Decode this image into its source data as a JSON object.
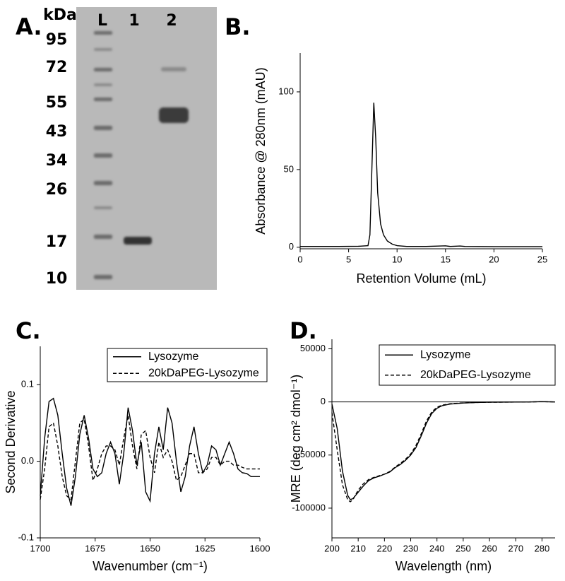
{
  "gel": {
    "panel_label": "A.",
    "unit_label": "kDa",
    "lanes": [
      "L",
      "1",
      "2"
    ],
    "markers": [
      95,
      72,
      55,
      43,
      34,
      26,
      17,
      10
    ]
  },
  "chart_data": [
    {
      "type": "line",
      "panel_label": "B.",
      "x_label": "Retention Volume (mL)",
      "y_label": "Absorbance @ 280nm (mAU)",
      "x": [
        0,
        2,
        4,
        6,
        7,
        7.2,
        7.4,
        7.6,
        7.8,
        8,
        8.3,
        8.6,
        9,
        9.5,
        10,
        11,
        13,
        15,
        15.5,
        16.5,
        17,
        20,
        25
      ],
      "values": [
        0.5,
        0.5,
        0.5,
        0.6,
        1,
        8,
        50,
        93,
        70,
        35,
        15,
        8,
        4,
        2,
        1,
        0.5,
        0.5,
        0.9,
        0.5,
        0.8,
        0.5,
        0.4,
        0.4
      ],
      "color": "#000000",
      "xlim": [
        0,
        25
      ],
      "xticks": [
        0,
        5,
        10,
        15,
        20,
        25
      ],
      "ylim": [
        -1,
        125
      ],
      "yticks": [
        0,
        50,
        100
      ]
    },
    {
      "type": "line",
      "panel_label": "C.",
      "x_label": "Wavenumber (cm⁻¹)",
      "y_label": "Second Derivative",
      "x": [
        1700,
        1698,
        1696,
        1694,
        1692,
        1690,
        1688,
        1686,
        1684,
        1682,
        1680,
        1678,
        1676,
        1674,
        1672,
        1670,
        1668,
        1666,
        1664,
        1662,
        1660,
        1658,
        1656,
        1654,
        1652,
        1650,
        1648,
        1646,
        1644,
        1642,
        1640,
        1638,
        1636,
        1634,
        1632,
        1630,
        1628,
        1626,
        1624,
        1622,
        1620,
        1618,
        1616,
        1614,
        1612,
        1610,
        1608,
        1606,
        1604,
        1602,
        1600
      ],
      "series": [
        {
          "name": "Lysozyme",
          "color": "#000000",
          "line_style": "solid",
          "values": [
            -0.045,
            0.03,
            0.078,
            0.082,
            0.06,
            0.01,
            -0.035,
            -0.058,
            -0.02,
            0.035,
            0.06,
            0.03,
            -0.01,
            -0.02,
            -0.015,
            0.01,
            0.025,
            0.01,
            -0.03,
            0.01,
            0.07,
            0.04,
            -0.005,
            0.025,
            -0.04,
            -0.052,
            0.01,
            0.045,
            0.015,
            0.07,
            0.05,
            0.0,
            -0.04,
            -0.02,
            0.02,
            0.045,
            0.01,
            -0.015,
            -0.005,
            0.02,
            0.015,
            -0.005,
            0.01,
            0.025,
            0.01,
            -0.01,
            -0.015,
            -0.016,
            -0.02,
            -0.02,
            -0.02
          ]
        },
        {
          "name": "20kDaPEG-Lysozyme",
          "color": "#000000",
          "line_style": "dashed",
          "values": [
            -0.05,
            -0.01,
            0.045,
            0.05,
            0.02,
            -0.02,
            -0.045,
            -0.05,
            0.0,
            0.05,
            0.055,
            0.02,
            -0.025,
            -0.01,
            0.01,
            0.02,
            0.02,
            0.015,
            -0.005,
            0.03,
            0.06,
            0.02,
            -0.01,
            0.035,
            0.04,
            0.005,
            -0.015,
            0.025,
            0.005,
            0.015,
            0.0,
            -0.025,
            -0.02,
            -0.005,
            0.01,
            0.01,
            -0.015,
            -0.015,
            -0.01,
            0.005,
            0.005,
            -0.005,
            0.0,
            0.0,
            -0.005,
            -0.005,
            -0.008,
            -0.01,
            -0.01,
            -0.01,
            -0.01
          ]
        }
      ],
      "xlim": [
        1700,
        1600
      ],
      "xticks": [
        1700,
        1675,
        1650,
        1625,
        1600
      ],
      "ylim": [
        -0.1,
        0.15
      ],
      "yticks": [
        -0.1,
        {
          "value": 0,
          "label": "0.0"
        },
        0.1
      ],
      "legend": "upper right"
    },
    {
      "type": "line",
      "panel_label": "D.",
      "x_label": "Wavelength (nm)",
      "y_label": "MRE (deg cm² dmol⁻¹)",
      "x": [
        200,
        202,
        204,
        206,
        207,
        208,
        210,
        212,
        214,
        216,
        218,
        220,
        222,
        224,
        226,
        228,
        230,
        232,
        234,
        236,
        238,
        240,
        242,
        245,
        250,
        255,
        260,
        265,
        270,
        275,
        280,
        285
      ],
      "series": [
        {
          "name": "Lysozyme",
          "color": "#000000",
          "line_style": "solid",
          "values": [
            -2000,
            -25000,
            -65000,
            -88000,
            -92000,
            -91000,
            -85000,
            -79000,
            -74000,
            -71500,
            -70000,
            -68000,
            -66000,
            -62000,
            -59000,
            -55000,
            -50000,
            -43000,
            -32000,
            -20000,
            -11000,
            -6000,
            -3500,
            -2000,
            -1000,
            -500,
            -300,
            -200,
            -100,
            0,
            300,
            0
          ]
        },
        {
          "name": "20kDaPEG-Lysozyme",
          "color": "#000000",
          "line_style": "dashed",
          "values": [
            -10000,
            -45000,
            -78000,
            -92000,
            -94000,
            -92000,
            -83000,
            -77000,
            -73000,
            -71000,
            -69500,
            -68000,
            -65500,
            -61500,
            -58000,
            -54000,
            -49000,
            -41000,
            -30000,
            -18000,
            -9500,
            -5000,
            -3000,
            -1700,
            -900,
            -500,
            -300,
            -200,
            -100,
            0,
            300,
            0
          ]
        }
      ],
      "xlim": [
        200,
        285
      ],
      "xticks": [
        200,
        210,
        220,
        230,
        240,
        250,
        260,
        270,
        280
      ],
      "ylim": [
        -128000,
        59000
      ],
      "yticks": [
        50000,
        0,
        -50000,
        -100000
      ],
      "zero_line": true,
      "legend": "upper right"
    }
  ]
}
